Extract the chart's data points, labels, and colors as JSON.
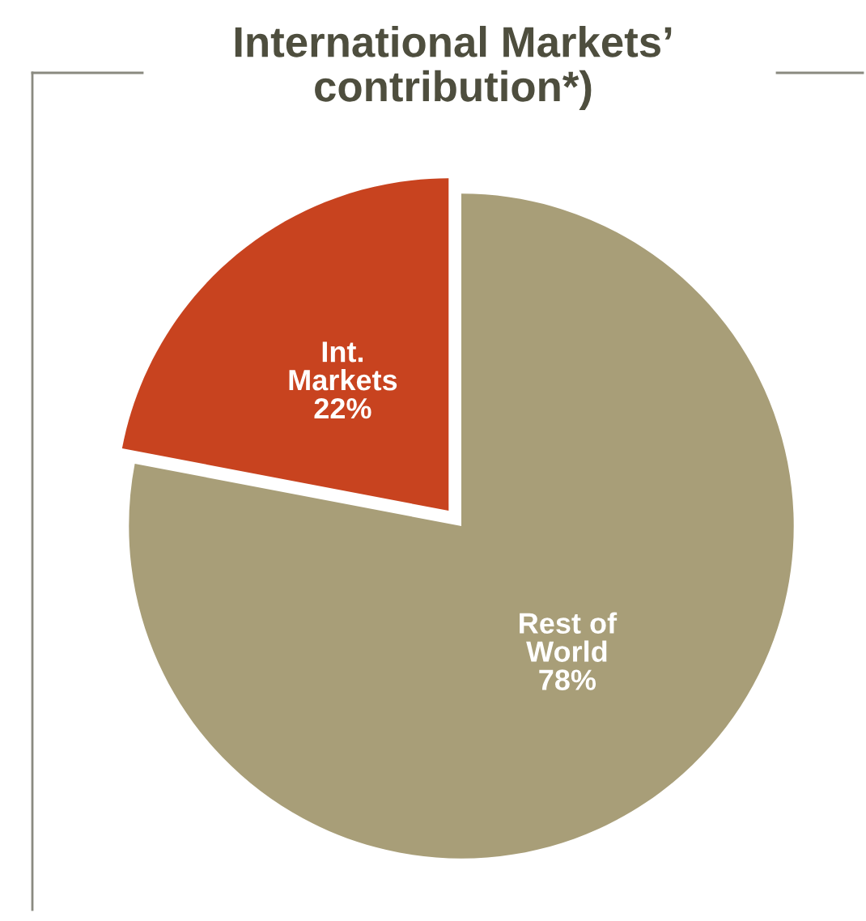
{
  "chart_data": {
    "type": "pie",
    "title": "International Markets’\ncontribution*)",
    "categories": [
      "Int.\nMarkets",
      "Rest of\nWorld"
    ],
    "values": [
      22,
      78
    ],
    "colors": [
      "#c8431f",
      "#a89e78"
    ],
    "value_labels": [
      "22%",
      "78%"
    ]
  }
}
